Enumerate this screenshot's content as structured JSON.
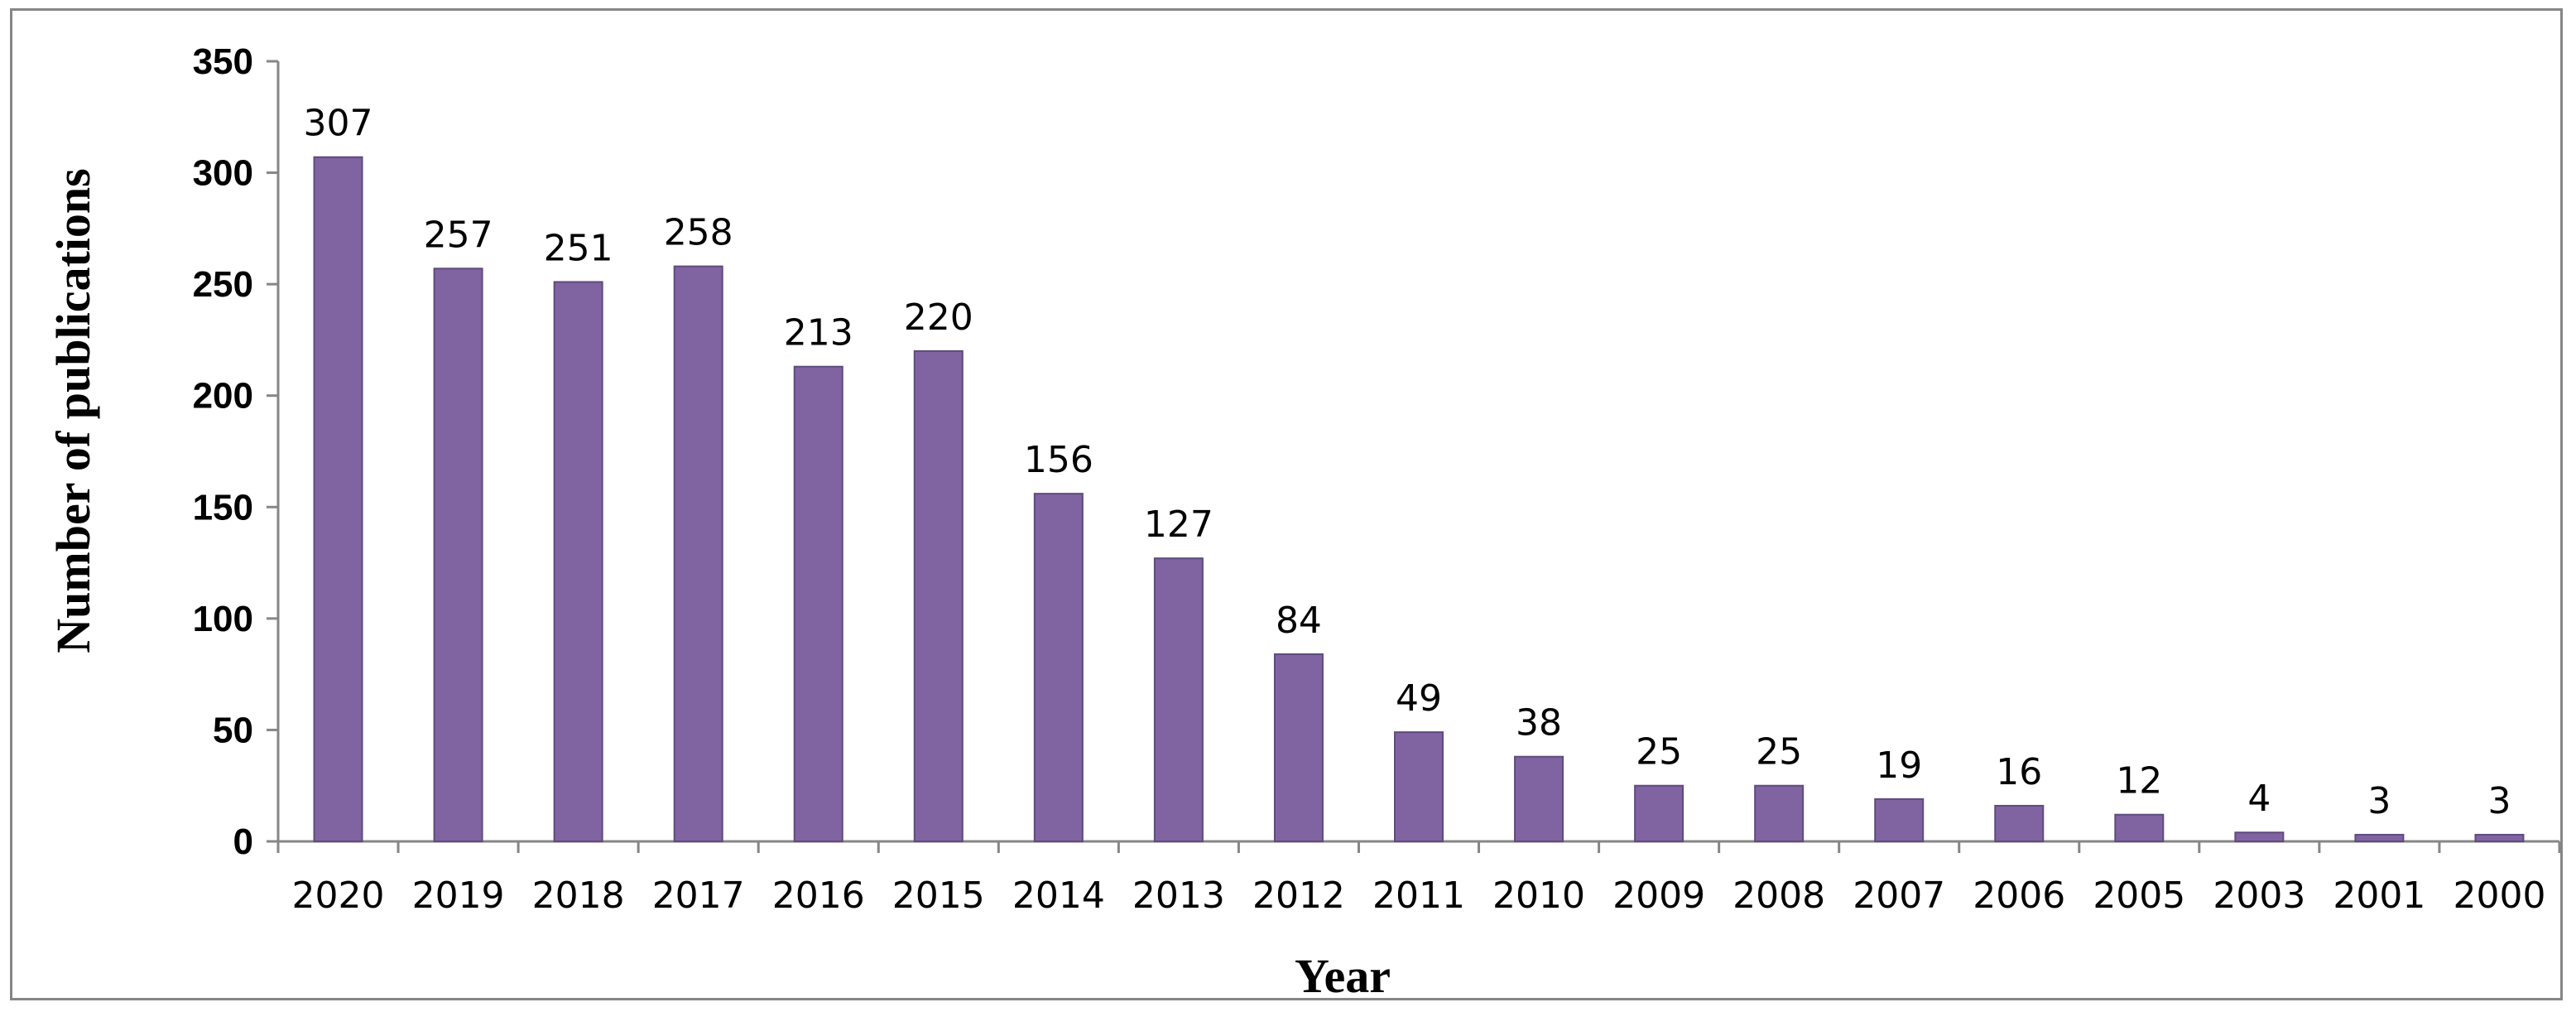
{
  "chart_data": {
    "type": "bar",
    "xlabel": "Year",
    "ylabel": "Number of publications",
    "categories": [
      "2020",
      "2019",
      "2018",
      "2017",
      "2016",
      "2015",
      "2014",
      "2013",
      "2012",
      "2011",
      "2010",
      "2009",
      "2008",
      "2007",
      "2006",
      "2005",
      "2003",
      "2001",
      "2000"
    ],
    "values": [
      307,
      257,
      251,
      258,
      213,
      220,
      156,
      127,
      84,
      49,
      38,
      25,
      25,
      19,
      16,
      12,
      4,
      3,
      3
    ],
    "ylim": [
      0,
      350
    ],
    "yticks": [
      0,
      50,
      100,
      150,
      200,
      250,
      300,
      350
    ],
    "grid": false,
    "legend": "none",
    "bar_color": "#8064a2",
    "bar_edge_color": "#5f4a7d"
  }
}
